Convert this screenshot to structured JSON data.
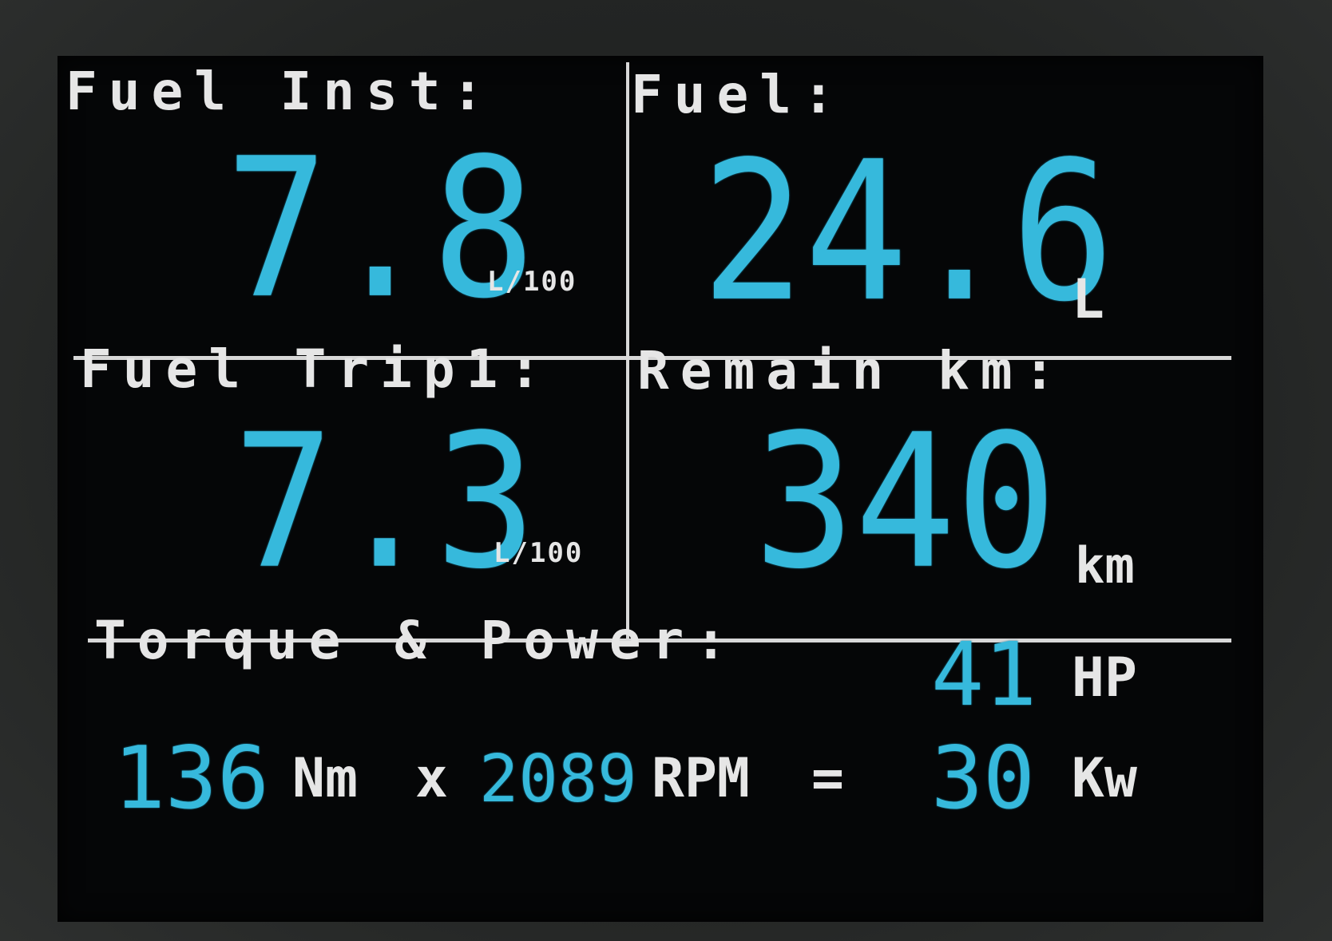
{
  "panels": {
    "fuel_inst": {
      "label": "Fuel Inst:",
      "value": "7.8",
      "unit": "L/100"
    },
    "fuel": {
      "label": "Fuel:",
      "value": "24.6",
      "unit": "L"
    },
    "fuel_trip1": {
      "label": "Fuel Trip1:",
      "value": "7.3",
      "unit": "L/100"
    },
    "remain_km": {
      "label": "Remain km:",
      "value": "340",
      "unit": "km"
    }
  },
  "torque_power": {
    "label": "Torque & Power:",
    "hp_value": "41",
    "hp_unit": "HP",
    "torque_value": "136",
    "torque_unit": "Nm",
    "times": "x",
    "rpm_value": "2089",
    "rpm_unit": "RPM",
    "equals": "=",
    "kw_value": "30",
    "kw_unit": "Kw"
  },
  "colors": {
    "value_cyan": "#36b9dc",
    "label_white": "#e6e6e6",
    "screen_bg": "#050607"
  }
}
